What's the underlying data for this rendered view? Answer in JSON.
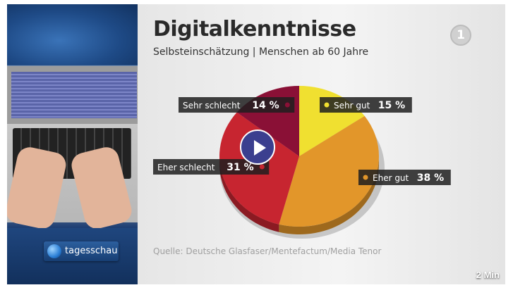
{
  "video": {
    "duration": "2 Min",
    "channel_logo": "tagesschau",
    "broadcaster_logo": "1"
  },
  "chart_data": {
    "type": "pie",
    "title": "Digitalkenntnisse",
    "subtitle": "Selbsteinschätzung | Menschen ab 60 Jahre",
    "source": "Quelle: Deutsche Glasfaser/Mentefactum/Media Tenor",
    "slices": [
      {
        "label": "Sehr gut",
        "value": 15,
        "display": "15 %",
        "color": "#f0e030"
      },
      {
        "label": "Eher gut",
        "value": 38,
        "display": "38 %",
        "color": "#e2962a"
      },
      {
        "label": "Eher schlecht",
        "value": 31,
        "display": "31 %",
        "color": "#c72530"
      },
      {
        "label": "Sehr schlecht",
        "value": 14,
        "display": "14 %",
        "color": "#8a1036"
      }
    ]
  }
}
